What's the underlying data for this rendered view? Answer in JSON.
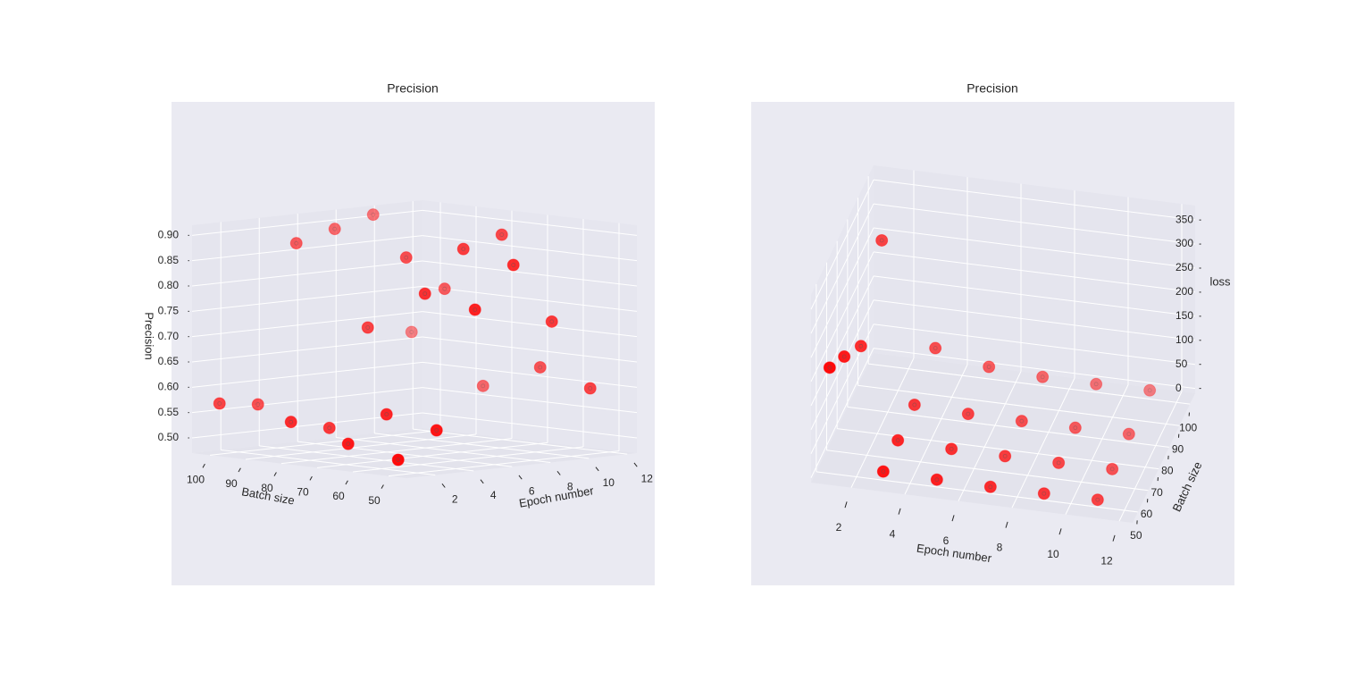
{
  "chart_data": [
    {
      "type": "scatter3d",
      "title": "Precision",
      "xlabel": "Epoch number",
      "ylabel": "Batch size",
      "zlabel": "Precision",
      "color": "#ff0000",
      "grid": true,
      "x": [
        1,
        3,
        5,
        7,
        9,
        11,
        1,
        3,
        5,
        7,
        9,
        11,
        1,
        3,
        5,
        7,
        9,
        11,
        1,
        3,
        5,
        7,
        9,
        11
      ],
      "y": [
        50,
        50,
        50,
        50,
        50,
        50,
        64,
        64,
        64,
        64,
        64,
        64,
        80,
        80,
        80,
        80,
        80,
        80,
        100,
        100,
        100,
        100,
        100,
        100
      ],
      "z": [
        0.5,
        0.55,
        0.78,
        0.86,
        0.74,
        0.6,
        0.52,
        0.57,
        0.8,
        0.88,
        0.9,
        0.63,
        0.55,
        0.53,
        0.72,
        0.85,
        0.78,
        0.58,
        0.57,
        0.56,
        0.87,
        0.89,
        0.91,
        0.67
      ],
      "xlim": [
        0.5,
        12.5
      ],
      "ylim": [
        45,
        105
      ],
      "zlim": [
        0.47,
        0.92
      ],
      "xticks": [
        2,
        4,
        6,
        8,
        10,
        12
      ],
      "yticks": [
        50,
        60,
        70,
        80,
        90,
        100
      ],
      "zticks": [
        {
          "value": 0.5,
          "label": "0.50"
        },
        {
          "value": 0.55,
          "label": "0.55"
        },
        {
          "value": 0.6,
          "label": "0.60"
        },
        {
          "value": 0.65,
          "label": "0.65"
        },
        {
          "value": 0.7,
          "label": "0.70"
        },
        {
          "value": 0.75,
          "label": "0.75"
        },
        {
          "value": 0.8,
          "label": "0.80"
        },
        {
          "value": 0.85,
          "label": "0.85"
        },
        {
          "value": 0.9,
          "label": "0.90"
        }
      ]
    },
    {
      "type": "scatter3d",
      "title": "Precision",
      "xlabel": "Epoch number",
      "ylabel": "Batch size",
      "zlabel": "loss",
      "color": "#ff0000",
      "grid": true,
      "x": [
        1,
        3,
        5,
        7,
        9,
        11,
        1,
        3,
        5,
        7,
        9,
        11,
        1,
        3,
        5,
        7,
        9,
        11,
        1,
        3,
        5,
        7,
        9,
        11
      ],
      "y": [
        50,
        50,
        50,
        50,
        50,
        50,
        64,
        64,
        64,
        64,
        64,
        64,
        80,
        80,
        80,
        80,
        80,
        80,
        100,
        100,
        100,
        100,
        100,
        100
      ],
      "z": [
        210,
        8,
        5,
        4,
        4,
        5,
        170,
        10,
        6,
        5,
        5,
        6,
        120,
        12,
        7,
        6,
        6,
        7,
        250,
        40,
        15,
        8,
        7,
        8
      ],
      "xlim": [
        0.5,
        12.5
      ],
      "ylim": [
        45,
        105
      ],
      "zlim": [
        -10,
        380
      ],
      "xticks": [
        2,
        4,
        6,
        8,
        10,
        12
      ],
      "yticks": [
        50,
        60,
        70,
        80,
        90,
        100
      ],
      "zticks": [
        0,
        50,
        100,
        150,
        200,
        250,
        300,
        350
      ]
    }
  ]
}
